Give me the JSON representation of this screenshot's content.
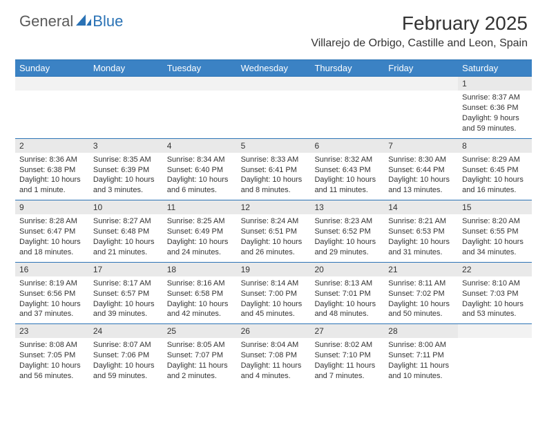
{
  "brand": {
    "part1": "General",
    "part2": "Blue"
  },
  "title": "February 2025",
  "location": "Villarejo de Orbigo, Castille and Leon, Spain",
  "colors": {
    "header_bg": "#3b82c4",
    "border": "#2a72b5",
    "daynum_bg": "#e9e9e9",
    "empty_bg": "#f2f2f2",
    "text": "#333333",
    "logo_gray": "#5a5a5a",
    "logo_blue": "#2a72b5"
  },
  "day_headers": [
    "Sunday",
    "Monday",
    "Tuesday",
    "Wednesday",
    "Thursday",
    "Friday",
    "Saturday"
  ],
  "weeks": [
    [
      {
        "n": "",
        "lines": [
          "",
          "",
          "",
          ""
        ]
      },
      {
        "n": "",
        "lines": [
          "",
          "",
          "",
          ""
        ]
      },
      {
        "n": "",
        "lines": [
          "",
          "",
          "",
          ""
        ]
      },
      {
        "n": "",
        "lines": [
          "",
          "",
          "",
          ""
        ]
      },
      {
        "n": "",
        "lines": [
          "",
          "",
          "",
          ""
        ]
      },
      {
        "n": "",
        "lines": [
          "",
          "",
          "",
          ""
        ]
      },
      {
        "n": "1",
        "lines": [
          "Sunrise: 8:37 AM",
          "Sunset: 6:36 PM",
          "Daylight: 9 hours",
          "and 59 minutes."
        ]
      }
    ],
    [
      {
        "n": "2",
        "lines": [
          "Sunrise: 8:36 AM",
          "Sunset: 6:38 PM",
          "Daylight: 10 hours",
          "and 1 minute."
        ]
      },
      {
        "n": "3",
        "lines": [
          "Sunrise: 8:35 AM",
          "Sunset: 6:39 PM",
          "Daylight: 10 hours",
          "and 3 minutes."
        ]
      },
      {
        "n": "4",
        "lines": [
          "Sunrise: 8:34 AM",
          "Sunset: 6:40 PM",
          "Daylight: 10 hours",
          "and 6 minutes."
        ]
      },
      {
        "n": "5",
        "lines": [
          "Sunrise: 8:33 AM",
          "Sunset: 6:41 PM",
          "Daylight: 10 hours",
          "and 8 minutes."
        ]
      },
      {
        "n": "6",
        "lines": [
          "Sunrise: 8:32 AM",
          "Sunset: 6:43 PM",
          "Daylight: 10 hours",
          "and 11 minutes."
        ]
      },
      {
        "n": "7",
        "lines": [
          "Sunrise: 8:30 AM",
          "Sunset: 6:44 PM",
          "Daylight: 10 hours",
          "and 13 minutes."
        ]
      },
      {
        "n": "8",
        "lines": [
          "Sunrise: 8:29 AM",
          "Sunset: 6:45 PM",
          "Daylight: 10 hours",
          "and 16 minutes."
        ]
      }
    ],
    [
      {
        "n": "9",
        "lines": [
          "Sunrise: 8:28 AM",
          "Sunset: 6:47 PM",
          "Daylight: 10 hours",
          "and 18 minutes."
        ]
      },
      {
        "n": "10",
        "lines": [
          "Sunrise: 8:27 AM",
          "Sunset: 6:48 PM",
          "Daylight: 10 hours",
          "and 21 minutes."
        ]
      },
      {
        "n": "11",
        "lines": [
          "Sunrise: 8:25 AM",
          "Sunset: 6:49 PM",
          "Daylight: 10 hours",
          "and 24 minutes."
        ]
      },
      {
        "n": "12",
        "lines": [
          "Sunrise: 8:24 AM",
          "Sunset: 6:51 PM",
          "Daylight: 10 hours",
          "and 26 minutes."
        ]
      },
      {
        "n": "13",
        "lines": [
          "Sunrise: 8:23 AM",
          "Sunset: 6:52 PM",
          "Daylight: 10 hours",
          "and 29 minutes."
        ]
      },
      {
        "n": "14",
        "lines": [
          "Sunrise: 8:21 AM",
          "Sunset: 6:53 PM",
          "Daylight: 10 hours",
          "and 31 minutes."
        ]
      },
      {
        "n": "15",
        "lines": [
          "Sunrise: 8:20 AM",
          "Sunset: 6:55 PM",
          "Daylight: 10 hours",
          "and 34 minutes."
        ]
      }
    ],
    [
      {
        "n": "16",
        "lines": [
          "Sunrise: 8:19 AM",
          "Sunset: 6:56 PM",
          "Daylight: 10 hours",
          "and 37 minutes."
        ]
      },
      {
        "n": "17",
        "lines": [
          "Sunrise: 8:17 AM",
          "Sunset: 6:57 PM",
          "Daylight: 10 hours",
          "and 39 minutes."
        ]
      },
      {
        "n": "18",
        "lines": [
          "Sunrise: 8:16 AM",
          "Sunset: 6:58 PM",
          "Daylight: 10 hours",
          "and 42 minutes."
        ]
      },
      {
        "n": "19",
        "lines": [
          "Sunrise: 8:14 AM",
          "Sunset: 7:00 PM",
          "Daylight: 10 hours",
          "and 45 minutes."
        ]
      },
      {
        "n": "20",
        "lines": [
          "Sunrise: 8:13 AM",
          "Sunset: 7:01 PM",
          "Daylight: 10 hours",
          "and 48 minutes."
        ]
      },
      {
        "n": "21",
        "lines": [
          "Sunrise: 8:11 AM",
          "Sunset: 7:02 PM",
          "Daylight: 10 hours",
          "and 50 minutes."
        ]
      },
      {
        "n": "22",
        "lines": [
          "Sunrise: 8:10 AM",
          "Sunset: 7:03 PM",
          "Daylight: 10 hours",
          "and 53 minutes."
        ]
      }
    ],
    [
      {
        "n": "23",
        "lines": [
          "Sunrise: 8:08 AM",
          "Sunset: 7:05 PM",
          "Daylight: 10 hours",
          "and 56 minutes."
        ]
      },
      {
        "n": "24",
        "lines": [
          "Sunrise: 8:07 AM",
          "Sunset: 7:06 PM",
          "Daylight: 10 hours",
          "and 59 minutes."
        ]
      },
      {
        "n": "25",
        "lines": [
          "Sunrise: 8:05 AM",
          "Sunset: 7:07 PM",
          "Daylight: 11 hours",
          "and 2 minutes."
        ]
      },
      {
        "n": "26",
        "lines": [
          "Sunrise: 8:04 AM",
          "Sunset: 7:08 PM",
          "Daylight: 11 hours",
          "and 4 minutes."
        ]
      },
      {
        "n": "27",
        "lines": [
          "Sunrise: 8:02 AM",
          "Sunset: 7:10 PM",
          "Daylight: 11 hours",
          "and 7 minutes."
        ]
      },
      {
        "n": "28",
        "lines": [
          "Sunrise: 8:00 AM",
          "Sunset: 7:11 PM",
          "Daylight: 11 hours",
          "and 10 minutes."
        ]
      },
      {
        "n": "",
        "lines": [
          "",
          "",
          "",
          ""
        ]
      }
    ]
  ]
}
